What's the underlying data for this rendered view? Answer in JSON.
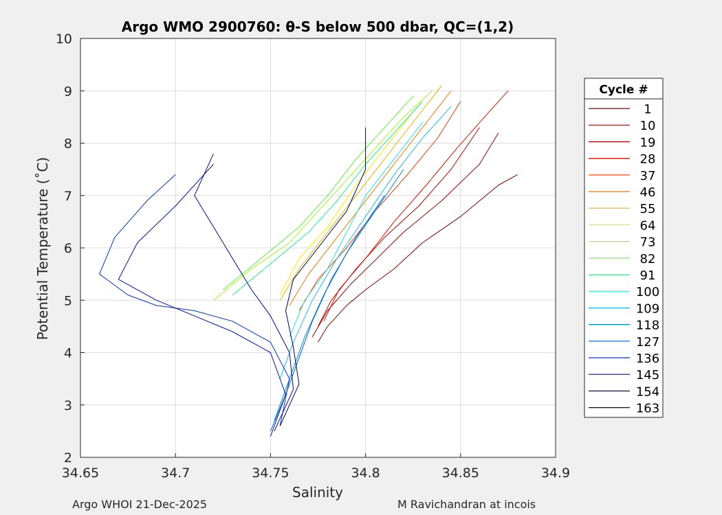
{
  "chart_data": {
    "type": "line",
    "title": "Argo WMO 2900760: θ-S below 500 dbar,  QC=(1,2)",
    "xlabel": "Salinity",
    "ylabel": "Potential Temperature (˚C)",
    "xlim": [
      34.65,
      34.9
    ],
    "ylim": [
      2,
      10
    ],
    "xticks": [
      "34.65",
      "34.7",
      "34.75",
      "34.8",
      "34.85",
      "34.9"
    ],
    "xtick_values": [
      34.65,
      34.7,
      34.75,
      34.8,
      34.85,
      34.9
    ],
    "yticks": [
      "2",
      "3",
      "4",
      "5",
      "6",
      "7",
      "8",
      "9",
      "10"
    ],
    "ytick_values": [
      2,
      3,
      4,
      5,
      6,
      7,
      8,
      9,
      10
    ],
    "grid": true,
    "legend": {
      "title": "Cycle #",
      "placement": "outside-right",
      "entries": [
        {
          "label": "1",
          "color": "#800000"
        },
        {
          "label": "10",
          "color": "#9b0000"
        },
        {
          "label": "19",
          "color": "#b90000"
        },
        {
          "label": "28",
          "color": "#d81000"
        },
        {
          "label": "37",
          "color": "#f03a00"
        },
        {
          "label": "46",
          "color": "#f07800"
        },
        {
          "label": "55",
          "color": "#e8b000"
        },
        {
          "label": "64",
          "color": "#f0f000"
        },
        {
          "label": "73",
          "color": "#a8f020"
        },
        {
          "label": "82",
          "color": "#60f040"
        },
        {
          "label": "91",
          "color": "#20f080"
        },
        {
          "label": "100",
          "color": "#20e8d0"
        },
        {
          "label": "109",
          "color": "#20b8f0"
        },
        {
          "label": "118",
          "color": "#0088c8"
        },
        {
          "label": "127",
          "color": "#0060d8"
        },
        {
          "label": "136",
          "color": "#0030c0"
        },
        {
          "label": "145",
          "color": "#0010a0"
        },
        {
          "label": "154",
          "color": "#000880"
        },
        {
          "label": "163",
          "color": "#000060"
        }
      ]
    },
    "series": [
      {
        "color": "#800000",
        "x": [
          34.775,
          34.78,
          34.79,
          34.8,
          34.815,
          34.83,
          34.85,
          34.87,
          34.88
        ],
        "y": [
          4.2,
          4.5,
          4.9,
          5.2,
          5.6,
          6.1,
          6.6,
          7.2,
          7.4
        ]
      },
      {
        "color": "#9b0000",
        "x": [
          34.772,
          34.78,
          34.792,
          34.806,
          34.82,
          34.84,
          34.86,
          34.87
        ],
        "y": [
          4.3,
          4.8,
          5.3,
          5.8,
          6.3,
          6.9,
          7.6,
          8.2
        ]
      },
      {
        "color": "#b90000",
        "x": [
          34.775,
          34.782,
          34.795,
          34.81,
          34.828,
          34.845,
          34.86
        ],
        "y": [
          4.5,
          5.0,
          5.6,
          6.2,
          6.8,
          7.5,
          8.3
        ]
      },
      {
        "color": "#d81000",
        "x": [
          34.778,
          34.786,
          34.8,
          34.815,
          34.832,
          34.848,
          34.865,
          34.875
        ],
        "y": [
          4.6,
          5.2,
          5.8,
          6.5,
          7.2,
          7.9,
          8.6,
          9.0
        ]
      },
      {
        "color": "#f03a00",
        "x": [
          34.765,
          34.775,
          34.79,
          34.805,
          34.822,
          34.838,
          34.85
        ],
        "y": [
          4.8,
          5.4,
          6.0,
          6.7,
          7.4,
          8.1,
          8.8
        ]
      },
      {
        "color": "#f07800",
        "x": [
          34.76,
          34.77,
          34.785,
          34.8,
          34.815,
          34.83,
          34.845
        ],
        "y": [
          4.9,
          5.5,
          6.2,
          6.9,
          7.6,
          8.3,
          9.0
        ]
      },
      {
        "color": "#e8b000",
        "x": [
          34.755,
          34.765,
          34.78,
          34.795,
          34.81,
          34.825,
          34.84
        ],
        "y": [
          5.0,
          5.6,
          6.3,
          7.0,
          7.7,
          8.4,
          9.1
        ]
      },
      {
        "color": "#f0f000",
        "x": [
          34.755,
          34.765,
          34.78,
          34.795,
          34.81,
          34.825
        ],
        "y": [
          5.1,
          5.8,
          6.4,
          7.2,
          7.9,
          8.6
        ]
      },
      {
        "color": "#a8f020",
        "x": [
          34.72,
          34.74,
          34.76,
          34.775,
          34.79,
          34.805,
          34.82,
          34.835
        ],
        "y": [
          5.0,
          5.6,
          6.1,
          6.7,
          7.3,
          7.9,
          8.5,
          9.0
        ]
      },
      {
        "color": "#60f040",
        "x": [
          34.725,
          34.745,
          34.765,
          34.78,
          34.795,
          34.81,
          34.825
        ],
        "y": [
          5.2,
          5.8,
          6.4,
          7.0,
          7.7,
          8.3,
          8.9
        ]
      },
      {
        "color": "#20f080",
        "x": [
          34.73,
          34.75,
          34.77,
          34.785,
          34.8,
          34.815,
          34.83
        ],
        "y": [
          5.1,
          5.7,
          6.3,
          6.9,
          7.6,
          8.2,
          8.8
        ]
      },
      {
        "color": "#20e8d0",
        "x": [
          34.76,
          34.768,
          34.78,
          34.79,
          34.8,
          34.815,
          34.83
        ],
        "y": [
          4.3,
          5.0,
          5.6,
          6.3,
          7.0,
          7.7,
          8.4
        ]
      },
      {
        "color": "#20b8f0",
        "x": [
          34.755,
          34.762,
          34.772,
          34.785,
          34.8,
          34.815,
          34.83,
          34.845
        ],
        "y": [
          3.5,
          4.2,
          5.0,
          5.8,
          6.6,
          7.4,
          8.1,
          8.7
        ]
      },
      {
        "color": "#0088c8",
        "x": [
          34.752,
          34.76,
          34.768,
          34.778,
          34.79,
          34.805,
          34.82
        ],
        "y": [
          2.7,
          3.5,
          4.3,
          5.1,
          5.9,
          6.7,
          7.5
        ]
      },
      {
        "color": "#0060d8",
        "x": [
          34.75,
          34.758,
          34.765,
          34.772,
          34.782,
          34.795,
          34.81
        ],
        "y": [
          2.5,
          3.2,
          3.9,
          4.6,
          5.4,
          6.2,
          7.0
        ]
      },
      {
        "color": "#0030c0",
        "x": [
          34.755,
          34.76,
          34.75,
          34.73,
          34.71,
          34.69,
          34.675,
          34.66,
          34.668,
          34.685,
          34.7
        ],
        "y": [
          2.6,
          3.5,
          4.2,
          4.6,
          4.8,
          4.9,
          5.1,
          5.5,
          6.2,
          6.9,
          7.4
        ]
      },
      {
        "color": "#0010a0",
        "x": [
          34.75,
          34.758,
          34.75,
          34.73,
          34.71,
          34.69,
          34.67,
          34.68,
          34.7,
          34.72
        ],
        "y": [
          2.4,
          3.2,
          4.0,
          4.4,
          4.7,
          5.0,
          5.4,
          6.1,
          6.8,
          7.6
        ]
      },
      {
        "color": "#000880",
        "x": [
          34.752,
          34.762,
          34.76,
          34.75,
          34.74,
          34.73,
          34.72,
          34.71,
          34.72
        ],
        "y": [
          2.5,
          3.3,
          4.0,
          4.7,
          5.2,
          5.8,
          6.4,
          7.0,
          7.8
        ]
      },
      {
        "color": "#000060",
        "x": [
          34.755,
          34.765,
          34.762,
          34.758,
          34.762,
          34.775,
          34.79,
          34.8,
          34.8
        ],
        "y": [
          2.6,
          3.4,
          4.1,
          4.8,
          5.4,
          6.0,
          6.7,
          7.5,
          8.3
        ]
      }
    ]
  },
  "footer": {
    "left": "Argo WHOI 21-Dec-2025",
    "right": "M Ravichandran at incois"
  }
}
